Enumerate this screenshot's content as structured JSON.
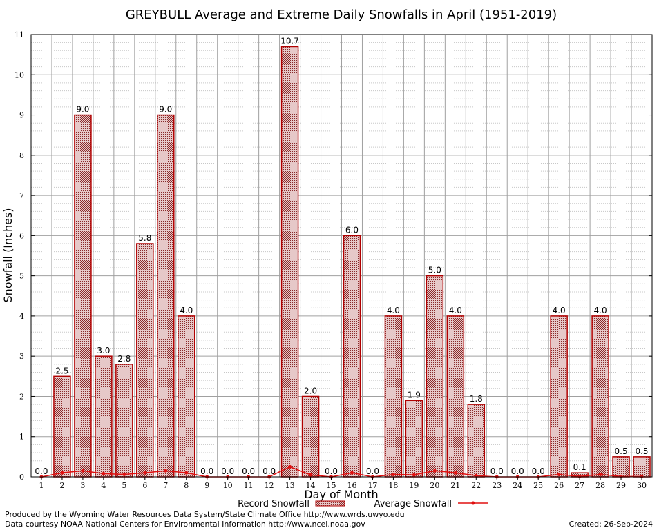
{
  "chart_data": {
    "type": "bar",
    "title": "GREYBULL Average and Extreme Daily Snowfalls in April (1951-2019)",
    "xlabel": "Day of Month",
    "ylabel": "Snowfall (Inches)",
    "ylim": [
      0,
      11
    ],
    "yticks": [
      "0",
      "1",
      "2",
      "3",
      "4",
      "5",
      "6",
      "7",
      "8",
      "9",
      "10",
      "11"
    ],
    "categories": [
      "1",
      "2",
      "3",
      "4",
      "5",
      "6",
      "7",
      "8",
      "9",
      "10",
      "11",
      "12",
      "13",
      "14",
      "15",
      "16",
      "17",
      "18",
      "19",
      "20",
      "21",
      "22",
      "23",
      "24",
      "25",
      "26",
      "27",
      "28",
      "29",
      "30"
    ],
    "series": [
      {
        "name": "Record Snowfall",
        "kind": "bar",
        "values": [
          0.0,
          2.5,
          9.0,
          3.0,
          2.8,
          5.8,
          9.0,
          4.0,
          0.0,
          0.0,
          0.0,
          0.0,
          10.7,
          2.0,
          0.0,
          6.0,
          0.0,
          4.0,
          1.9,
          5.0,
          4.0,
          1.8,
          0.0,
          0.0,
          0.0,
          4.0,
          0.1,
          4.0,
          0.5,
          0.5
        ],
        "labels": [
          "0.0",
          "2.5",
          "9.0",
          "3.0",
          "2.8",
          "5.8",
          "9.0",
          "4.0",
          "0.0",
          "0.0",
          "0.0",
          "0.0",
          "10.7",
          "2.0",
          "0.0",
          "6.0",
          "0.0",
          "4.0",
          "1.9",
          "5.0",
          "4.0",
          "1.8",
          "0.0",
          "0.0",
          "0.0",
          "4.0",
          "0.1",
          "4.0",
          "0.5",
          "0.5"
        ]
      },
      {
        "name": "Average Snowfall",
        "kind": "line",
        "values": [
          0.0,
          0.1,
          0.15,
          0.08,
          0.06,
          0.1,
          0.15,
          0.1,
          0.0,
          0.0,
          0.0,
          0.0,
          0.25,
          0.05,
          0.0,
          0.1,
          0.0,
          0.06,
          0.05,
          0.15,
          0.1,
          0.03,
          0.0,
          0.0,
          0.0,
          0.06,
          0.01,
          0.06,
          0.01,
          0.01
        ]
      }
    ],
    "colors": {
      "bar_stroke": "#b00000",
      "bar_fill": "#c89090",
      "line": "#e01010",
      "grid": "#a0a0a0"
    }
  },
  "footer": {
    "produced_by": "Produced by the Wyoming Water Resources Data System/State Climate Office http://www.wrds.uwyo.edu",
    "data_courtesy": "Data courtesy NOAA National Centers for Environmental Information http://www.ncei.noaa.gov",
    "created": "Created:  26-Sep-2024"
  }
}
